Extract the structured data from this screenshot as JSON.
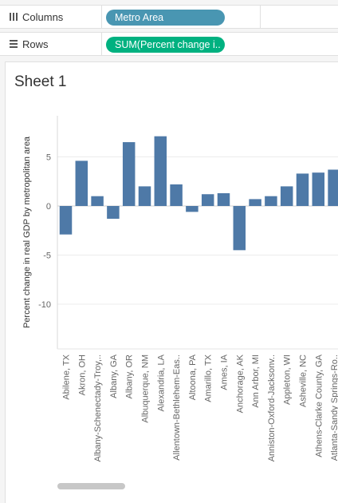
{
  "shelves": {
    "columns": {
      "label": "Columns",
      "icon": "columns-icon",
      "pill": "Metro Area",
      "pill_color": "#4996b2"
    },
    "rows": {
      "label": "Rows",
      "icon": "rows-icon",
      "pill": "SUM(Percent change i..",
      "pill_color": "#00b180"
    }
  },
  "sheet": {
    "title": "Sheet 1"
  },
  "chart_data": {
    "type": "bar",
    "ylabel": "Percent change in real GDP by metropolitan area",
    "ylim": [
      -14,
      10
    ],
    "yticks": [
      5,
      0,
      -5,
      -10
    ],
    "grid": true,
    "bar_color": "#4e79a7",
    "categories": [
      "Abilene, TX",
      "Akron, OH",
      "Albany-Schenectady-Troy,..",
      "Albany, GA",
      "Albany, OR",
      "Albuquerque, NM",
      "Alexandria, LA",
      "Allentown-Bethlehem-Eas..",
      "Altoona, PA",
      "Amarillo, TX",
      "Ames, IA",
      "Anchorage, AK",
      "Ann Arbor, MI",
      "Anniston-Oxford-Jacksonv..",
      "Appleton, WI",
      "Asheville, NC",
      "Athens-Clarke County, GA",
      "Atlanta-Sandy Springs-Ro.."
    ],
    "values": [
      -2.9,
      4.6,
      1.0,
      -1.3,
      6.5,
      2.0,
      7.1,
      2.2,
      -0.6,
      1.2,
      1.3,
      -4.5,
      0.7,
      1.0,
      2.0,
      3.3,
      3.4,
      3.7
    ]
  }
}
